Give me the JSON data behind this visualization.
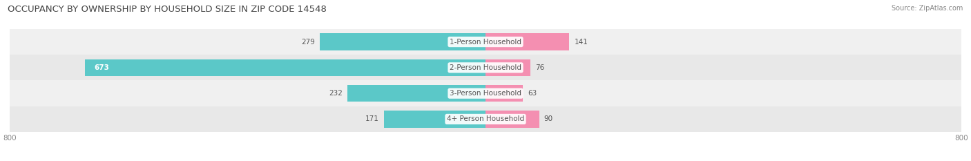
{
  "title": "OCCUPANCY BY OWNERSHIP BY HOUSEHOLD SIZE IN ZIP CODE 14548",
  "source": "Source: ZipAtlas.com",
  "categories": [
    "1-Person Household",
    "2-Person Household",
    "3-Person Household",
    "4+ Person Household"
  ],
  "owner_values": [
    279,
    673,
    232,
    171
  ],
  "renter_values": [
    141,
    76,
    63,
    90
  ],
  "owner_color": "#5bc8c8",
  "renter_color": "#f48fb1",
  "row_colors": [
    "#f0f0f0",
    "#e8e8e8",
    "#f0f0f0",
    "#e8e8e8"
  ],
  "axis_min": -800,
  "axis_max": 800,
  "title_fontsize": 9.5,
  "label_fontsize": 7.5,
  "tick_fontsize": 7.5,
  "source_fontsize": 7,
  "value_inside_threshold": 400
}
